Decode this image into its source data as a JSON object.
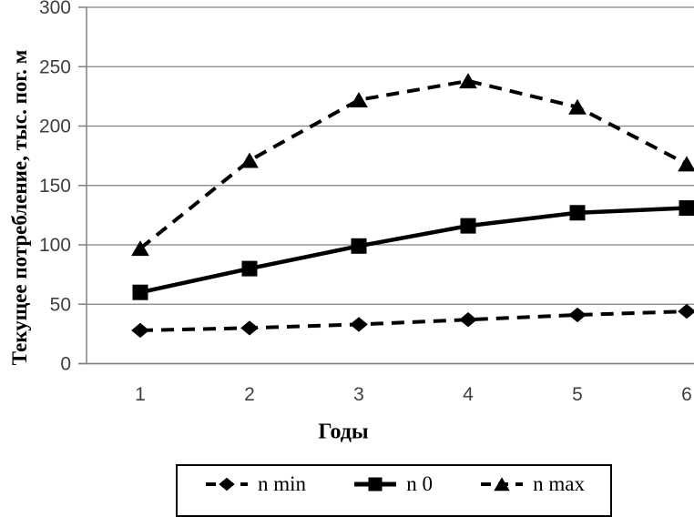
{
  "chart_data": {
    "type": "line",
    "title": "",
    "xlabel": "Годы",
    "ylabel": "Текущее потребление, тыс. пог. м",
    "x": [
      1,
      2,
      3,
      4,
      5,
      6
    ],
    "yticks": [
      0,
      50,
      100,
      150,
      200,
      250,
      300
    ],
    "ylim": [
      0,
      300
    ],
    "grid": true,
    "legend_position": "bottom",
    "series": [
      {
        "name": "n min",
        "marker": "diamond",
        "line": "dashed",
        "values": [
          28,
          30,
          33,
          37,
          41,
          44
        ]
      },
      {
        "name": "n 0",
        "marker": "square",
        "line": "solid",
        "values": [
          60,
          80,
          99,
          116,
          127,
          131
        ]
      },
      {
        "name": "n max",
        "marker": "triangle",
        "line": "dashed",
        "values": [
          97,
          171,
          222,
          238,
          216,
          168
        ]
      }
    ],
    "colors": {
      "series": "#000000",
      "grid": "#808080",
      "axis": "#808080",
      "tick_label": "#3f3f3f",
      "text": "#000000"
    }
  }
}
